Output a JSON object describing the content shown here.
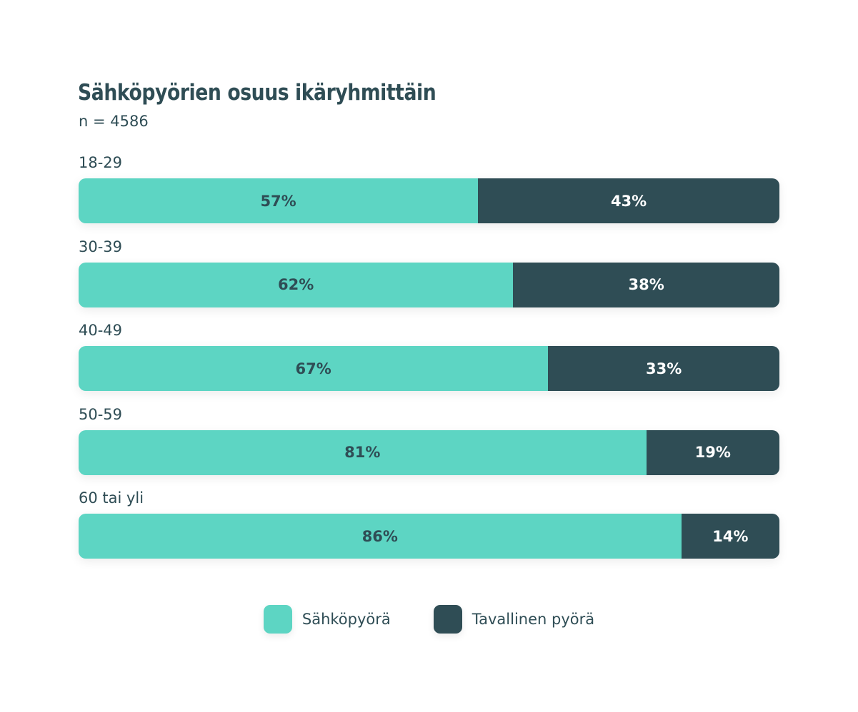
{
  "chart_data": {
    "type": "bar",
    "orientation": "horizontal",
    "stacked": true,
    "title": "Sähköpyörien osuus ikäryhmittäin",
    "subtitle": "n = 4586",
    "categories": [
      "18-29",
      "30-39",
      "40-49",
      "50-59",
      "60 tai yli"
    ],
    "series": [
      {
        "name": "Sähköpyörä",
        "values": [
          57,
          62,
          67,
          81,
          86
        ],
        "color": "#5dd5c3"
      },
      {
        "name": "Tavallinen pyörä",
        "values": [
          43,
          38,
          33,
          19,
          14
        ],
        "color": "#2f4d55"
      }
    ],
    "value_suffix": "%",
    "xlim": [
      0,
      100
    ],
    "grid": false,
    "legend_position": "bottom-center"
  }
}
